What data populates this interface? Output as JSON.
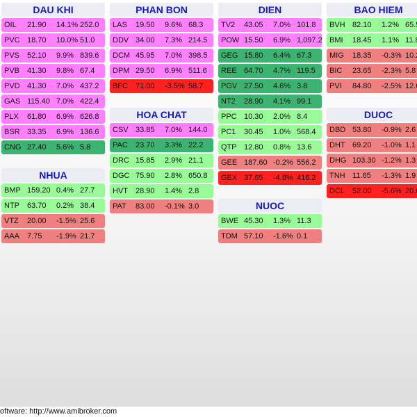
{
  "colors": {
    "ceiling": "#ff80ff",
    "strong_up": "#3cb371",
    "up": "#98fb98",
    "down": "#f08080",
    "strong_down": "#ff2020",
    "header_bg": "#ececf4",
    "header_text": "#1818b8"
  },
  "sectors": [
    {
      "name": "DAU KHI",
      "rows": [
        {
          "symbol": "OIL",
          "price": "21.90",
          "change": "14.1%",
          "volume": "252.0",
          "status": "ceiling"
        },
        {
          "symbol": "PVC",
          "price": "18.70",
          "change": "10.0%",
          "volume": "51.0",
          "status": "ceiling"
        },
        {
          "symbol": "PVS",
          "price": "52.10",
          "change": "9.9%",
          "volume": "839.6",
          "status": "ceiling"
        },
        {
          "symbol": "PVB",
          "price": "41.30",
          "change": "9.8%",
          "volume": "67.4",
          "status": "ceiling"
        },
        {
          "symbol": "PVD",
          "price": "41.30",
          "change": "7.0%",
          "volume": "437.2",
          "status": "ceiling"
        },
        {
          "symbol": "GAS",
          "price": "115.40",
          "change": "7.0%",
          "volume": "422.4",
          "status": "ceiling"
        },
        {
          "symbol": "PLX",
          "price": "61.80",
          "change": "6.9%",
          "volume": "626.8",
          "status": "ceiling"
        },
        {
          "symbol": "BSR",
          "price": "33.35",
          "change": "6.9%",
          "volume": "136.6",
          "status": "ceiling"
        },
        {
          "symbol": "CNG",
          "price": "27.40",
          "change": "5.6%",
          "volume": "5.8",
          "status": "strong_up"
        }
      ]
    },
    {
      "name": "NHUA",
      "rows": [
        {
          "symbol": "BMP",
          "price": "159.20",
          "change": "0.4%",
          "volume": "27.7",
          "status": "up"
        },
        {
          "symbol": "NTP",
          "price": "63.70",
          "change": "0.2%",
          "volume": "38.4",
          "status": "up"
        },
        {
          "symbol": "VTZ",
          "price": "20.00",
          "change": "-1.5%",
          "volume": "25.6",
          "status": "down"
        },
        {
          "symbol": "AAA",
          "price": "7.75",
          "change": "-1.9%",
          "volume": "21.7",
          "status": "down"
        }
      ]
    },
    {
      "name": "PHAN BON",
      "rows": [
        {
          "symbol": "LAS",
          "price": "19.50",
          "change": "9.6%",
          "volume": "68.3",
          "status": "ceiling"
        },
        {
          "symbol": "DDV",
          "price": "34.00",
          "change": "7.3%",
          "volume": "214.5",
          "status": "ceiling"
        },
        {
          "symbol": "DCM",
          "price": "45.95",
          "change": "7.0%",
          "volume": "398.5",
          "status": "ceiling"
        },
        {
          "symbol": "DPM",
          "price": "29.50",
          "change": "6.9%",
          "volume": "511.6",
          "status": "ceiling"
        },
        {
          "symbol": "BFC",
          "price": "71.00",
          "change": "-3.5%",
          "volume": "58.7",
          "status": "strong_down"
        }
      ]
    },
    {
      "name": "HOA CHAT",
      "rows": [
        {
          "symbol": "CSV",
          "price": "33.85",
          "change": "7.0%",
          "volume": "144.0",
          "status": "ceiling"
        },
        {
          "symbol": "PAC",
          "price": "23.70",
          "change": "3.3%",
          "volume": "22.2",
          "status": "strong_up"
        },
        {
          "symbol": "DRC",
          "price": "15.85",
          "change": "2.9%",
          "volume": "21.1",
          "status": "up"
        },
        {
          "symbol": "DGC",
          "price": "75.90",
          "change": "2.8%",
          "volume": "650.8",
          "status": "up"
        },
        {
          "symbol": "HVT",
          "price": "28.90",
          "change": "1.4%",
          "volume": "2.8",
          "status": "up"
        },
        {
          "symbol": "PAT",
          "price": "83.00",
          "change": "-0.1%",
          "volume": "3.0",
          "status": "down"
        }
      ]
    },
    {
      "name": "DIEN",
      "rows": [
        {
          "symbol": "TV2",
          "price": "43.05",
          "change": "7.0%",
          "volume": "101.8",
          "status": "ceiling"
        },
        {
          "symbol": "POW",
          "price": "15.50",
          "change": "6.9%",
          "volume": "1,097.2",
          "status": "ceiling"
        },
        {
          "symbol": "GEG",
          "price": "15.80",
          "change": "6.4%",
          "volume": "67.3",
          "status": "strong_up"
        },
        {
          "symbol": "REE",
          "price": "64.70",
          "change": "4.7%",
          "volume": "119.5",
          "status": "strong_up"
        },
        {
          "symbol": "PGV",
          "price": "27.50",
          "change": "4.6%",
          "volume": "3.8",
          "status": "strong_up"
        },
        {
          "symbol": "NT2",
          "price": "28.90",
          "change": "4.1%",
          "volume": "99.1",
          "status": "strong_up"
        },
        {
          "symbol": "PPC",
          "price": "10.30",
          "change": "2.0%",
          "volume": "8.4",
          "status": "up"
        },
        {
          "symbol": "PC1",
          "price": "30.45",
          "change": "1.0%",
          "volume": "568.4",
          "status": "up"
        },
        {
          "symbol": "QTP",
          "price": "12.80",
          "change": "0.8%",
          "volume": "13.6",
          "status": "up"
        },
        {
          "symbol": "GEE",
          "price": "187.60",
          "change": "-0.2%",
          "volume": "556.2",
          "status": "down"
        },
        {
          "symbol": "GEX",
          "price": "37.65",
          "change": "-4.8%",
          "volume": "416.2",
          "status": "strong_down"
        }
      ]
    },
    {
      "name": "NUOC",
      "rows": [
        {
          "symbol": "BWE",
          "price": "45.30",
          "change": "1.3%",
          "volume": "11.3",
          "status": "up"
        },
        {
          "symbol": "TDM",
          "price": "57.10",
          "change": "-1.6%",
          "volume": "0.1",
          "status": "down"
        }
      ]
    },
    {
      "name": "BAO HIEM",
      "rows": [
        {
          "symbol": "BVH",
          "price": "82.10",
          "change": "1.2%",
          "volume": "65.5",
          "status": "up"
        },
        {
          "symbol": "BMI",
          "price": "18.45",
          "change": "1.1%",
          "volume": "11.8",
          "status": "up"
        },
        {
          "symbol": "MIG",
          "price": "18.35",
          "change": "-0.3%",
          "volume": "10.2",
          "status": "down"
        },
        {
          "symbol": "BIC",
          "price": "23.65",
          "change": "-2.3%",
          "volume": "5.8",
          "status": "down"
        },
        {
          "symbol": "PVI",
          "price": "84.80",
          "change": "-2.5%",
          "volume": "12.6",
          "status": "down"
        }
      ]
    },
    {
      "name": "DUOC",
      "rows": [
        {
          "symbol": "DBD",
          "price": "53.80",
          "change": "-0.9%",
          "volume": "2.6",
          "status": "down"
        },
        {
          "symbol": "DHT",
          "price": "69.20",
          "change": "-1.0%",
          "volume": "1.1",
          "status": "down"
        },
        {
          "symbol": "DHG",
          "price": "103.30",
          "change": "-1.2%",
          "volume": "1.3",
          "status": "down"
        },
        {
          "symbol": "TNH",
          "price": "11.65",
          "change": "-1.3%",
          "volume": "1.9",
          "status": "down"
        },
        {
          "symbol": "DCL",
          "price": "52.00",
          "change": "-5.6%",
          "volume": "20.6",
          "status": "strong_down"
        }
      ]
    }
  ],
  "footer": {
    "text": "oftware: http://www.amibroker.com"
  }
}
